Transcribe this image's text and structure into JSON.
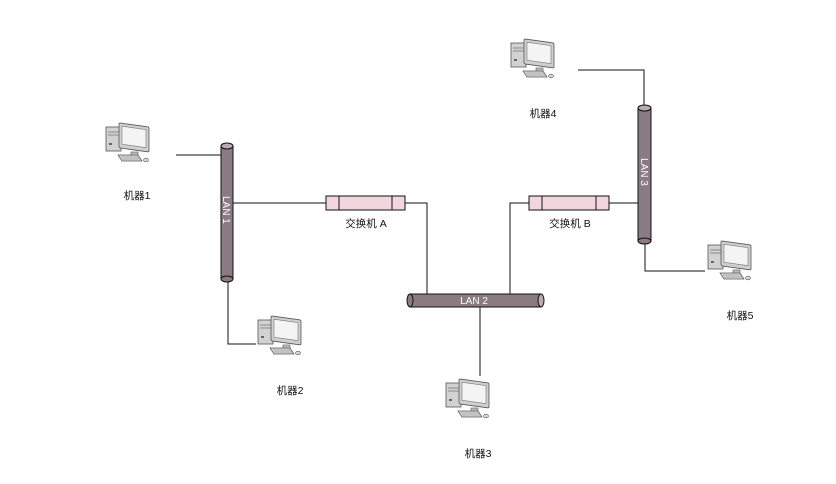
{
  "colors": {
    "bus_body": "#8a7a82",
    "bus_end": "#b8aab0",
    "bus_outline": "#111111",
    "switch_body": "#f2d6de",
    "wire": "#111111",
    "monitor_frame": "#cfcfcf",
    "monitor_screen": "#f4f4f4",
    "tower": "#d2d2d2"
  },
  "buses": {
    "lan1": {
      "label": "LAN 1"
    },
    "lan2": {
      "label": "LAN 2"
    },
    "lan3": {
      "label": "LAN 3"
    }
  },
  "switches": {
    "a": {
      "label": "交换机 A"
    },
    "b": {
      "label": "交换机 B"
    }
  },
  "machines": {
    "m1": {
      "label": "机器1",
      "icon": "desktop-computer-icon"
    },
    "m2": {
      "label": "机器2",
      "icon": "desktop-computer-icon"
    },
    "m3": {
      "label": "机器3",
      "icon": "desktop-computer-icon"
    },
    "m4": {
      "label": "机器4",
      "icon": "desktop-computer-icon"
    },
    "m5": {
      "label": "机器5",
      "icon": "desktop-computer-icon"
    }
  }
}
